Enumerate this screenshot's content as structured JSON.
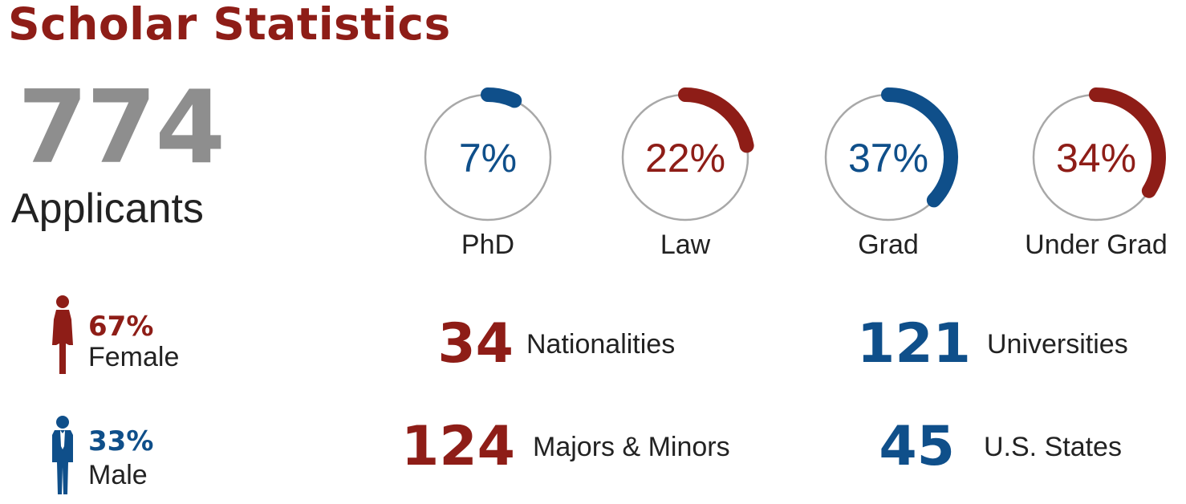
{
  "title": "Scholar Statistics",
  "applicants": {
    "count": "774",
    "label": "Applicants"
  },
  "colors": {
    "red": "#8e1d17",
    "blue": "#0f4f8a",
    "gray": "#8e8e8e",
    "ring": "#a8a8a8"
  },
  "gender": [
    {
      "percent": "67%",
      "label": "Female",
      "color": "red",
      "icon": "female-person-icon"
    },
    {
      "percent": "33%",
      "label": "Male",
      "color": "blue",
      "icon": "male-person-icon"
    }
  ],
  "stats": [
    {
      "value": "34",
      "label": "Nationalities",
      "color": "red"
    },
    {
      "value": "121",
      "label": "Universities",
      "color": "blue"
    },
    {
      "value": "124",
      "label": "Majors & Minors",
      "color": "red"
    },
    {
      "value": "45",
      "label": "U.S. States",
      "color": "blue"
    }
  ],
  "chart_data": {
    "type": "pie",
    "categories": [
      "PhD",
      "Law",
      "Grad",
      "Under Grad"
    ],
    "values": [
      7,
      22,
      37,
      34
    ],
    "value_labels": [
      "7%",
      "22%",
      "37%",
      "34%"
    ],
    "colors": [
      "blue",
      "red",
      "blue",
      "red"
    ]
  }
}
